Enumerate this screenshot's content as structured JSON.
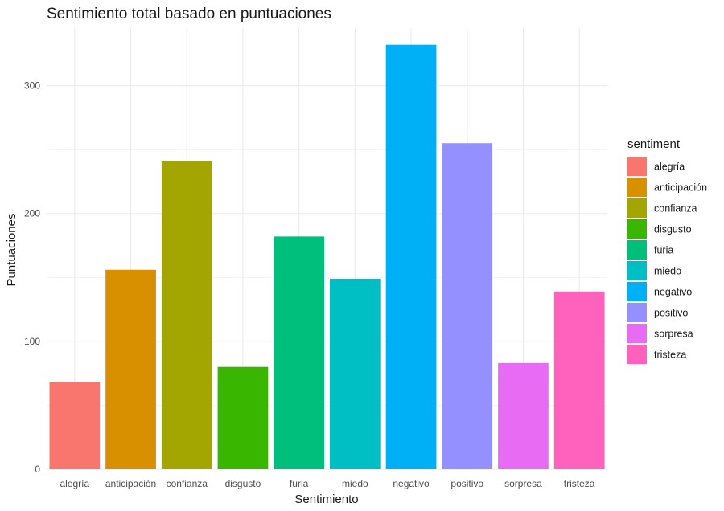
{
  "chart_data": {
    "type": "bar",
    "title": "Sentimiento total basado en puntuaciones",
    "xlabel": "Sentimiento",
    "ylabel": "Puntuaciones",
    "categories": [
      "alegría",
      "anticipación",
      "confianza",
      "disgusto",
      "furia",
      "miedo",
      "negativo",
      "positivo",
      "sorpresa",
      "tristeza"
    ],
    "values": [
      68,
      156,
      241,
      80,
      182,
      149,
      332,
      255,
      83,
      139
    ],
    "colors": [
      "#F8766D",
      "#D89000",
      "#A3A500",
      "#39B600",
      "#00BF7D",
      "#00BFC4",
      "#00B0F6",
      "#9590FF",
      "#E76BF3",
      "#FF62BC"
    ],
    "ylim": [
      0,
      345
    ],
    "yticks": [
      0,
      100,
      200,
      300
    ],
    "grid": true,
    "legend": {
      "title": "sentiment",
      "position": "right",
      "entries": [
        "alegría",
        "anticipación",
        "confianza",
        "disgusto",
        "furia",
        "miedo",
        "negativo",
        "positivo",
        "sorpresa",
        "tristeza"
      ]
    }
  }
}
